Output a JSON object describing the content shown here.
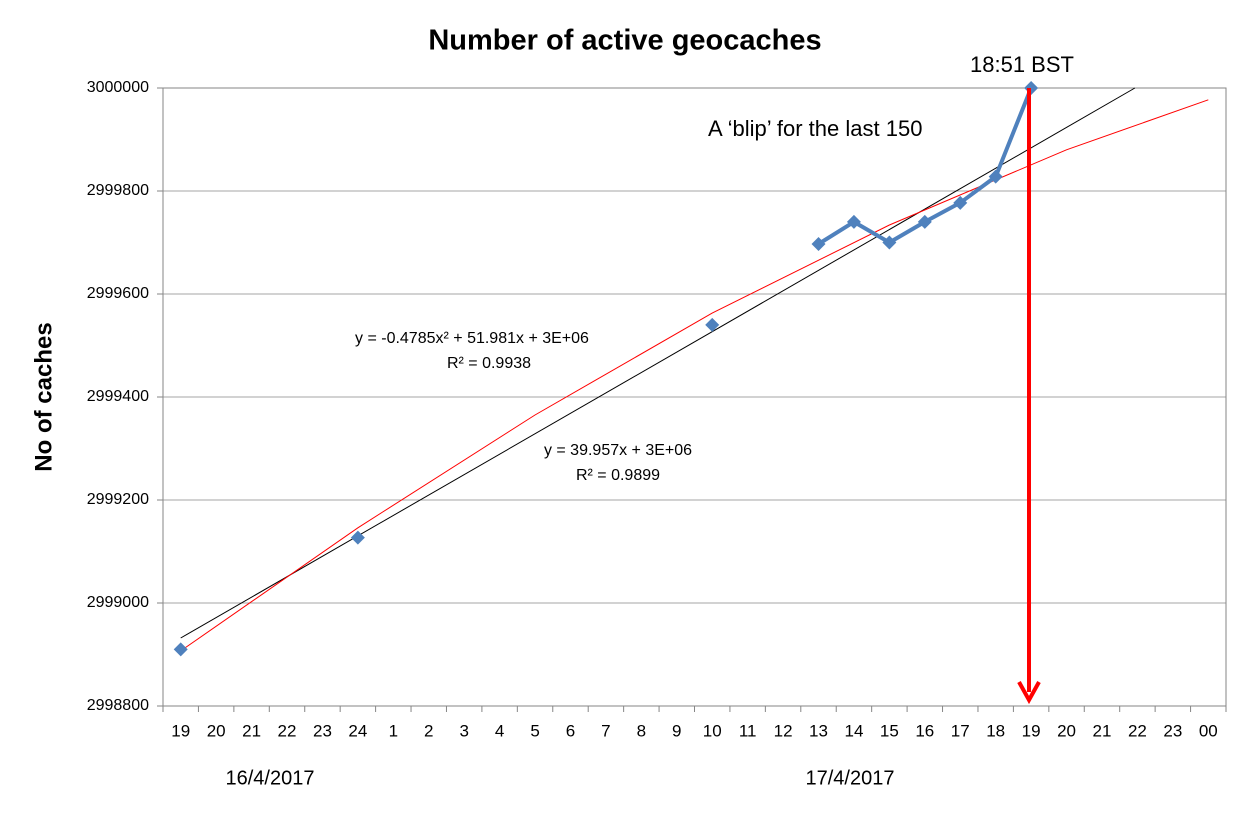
{
  "chart_data": {
    "type": "line",
    "title": "Number of active geocaches",
    "y_label": "No of caches",
    "categories": [
      "19",
      "20",
      "21",
      "22",
      "23",
      "24",
      "1",
      "2",
      "3",
      "4",
      "5",
      "6",
      "7",
      "8",
      "9",
      "10",
      "11",
      "12",
      "13",
      "14",
      "15",
      "16",
      "17",
      "18",
      "19",
      "20",
      "21",
      "22",
      "23",
      "00"
    ],
    "series": [
      {
        "color": "#4f81bd",
        "values": [
          2998910,
          null,
          null,
          null,
          null,
          2999127,
          null,
          null,
          null,
          null,
          null,
          null,
          null,
          null,
          null,
          2999540,
          null,
          null,
          2999697,
          2999740,
          2999700,
          2999740,
          2999777,
          2999828,
          3000000,
          null,
          null,
          null,
          null,
          null
        ]
      }
    ],
    "trendlines": [
      {
        "color": "#000000",
        "x": [
          0,
          26.93
        ],
        "values": [
          2998932,
          3000000
        ]
      },
      {
        "color": "#ff0000",
        "x": [
          0,
          5,
          10,
          15,
          20,
          25,
          29
        ],
        "values": [
          2998907,
          2999146,
          2999365,
          2999563,
          2999734,
          2999880,
          2999977
        ]
      }
    ],
    "ylim": [
      2998800,
      3000000
    ],
    "yticks": [
      2998800,
      2999000,
      2999200,
      2999400,
      2999600,
      2999800,
      3000000
    ],
    "grid": true,
    "annotations": [
      "y = -0.4785x² + 51.981x + 3E+06",
      "R² = 0.9938",
      "y = 39.957x + 3E+06",
      "R² = 0.9899",
      "18:51 BST",
      "A ‘blip’ for the last 150"
    ],
    "date_labels": [
      "16/4/2017",
      "17/4/2017"
    ]
  }
}
